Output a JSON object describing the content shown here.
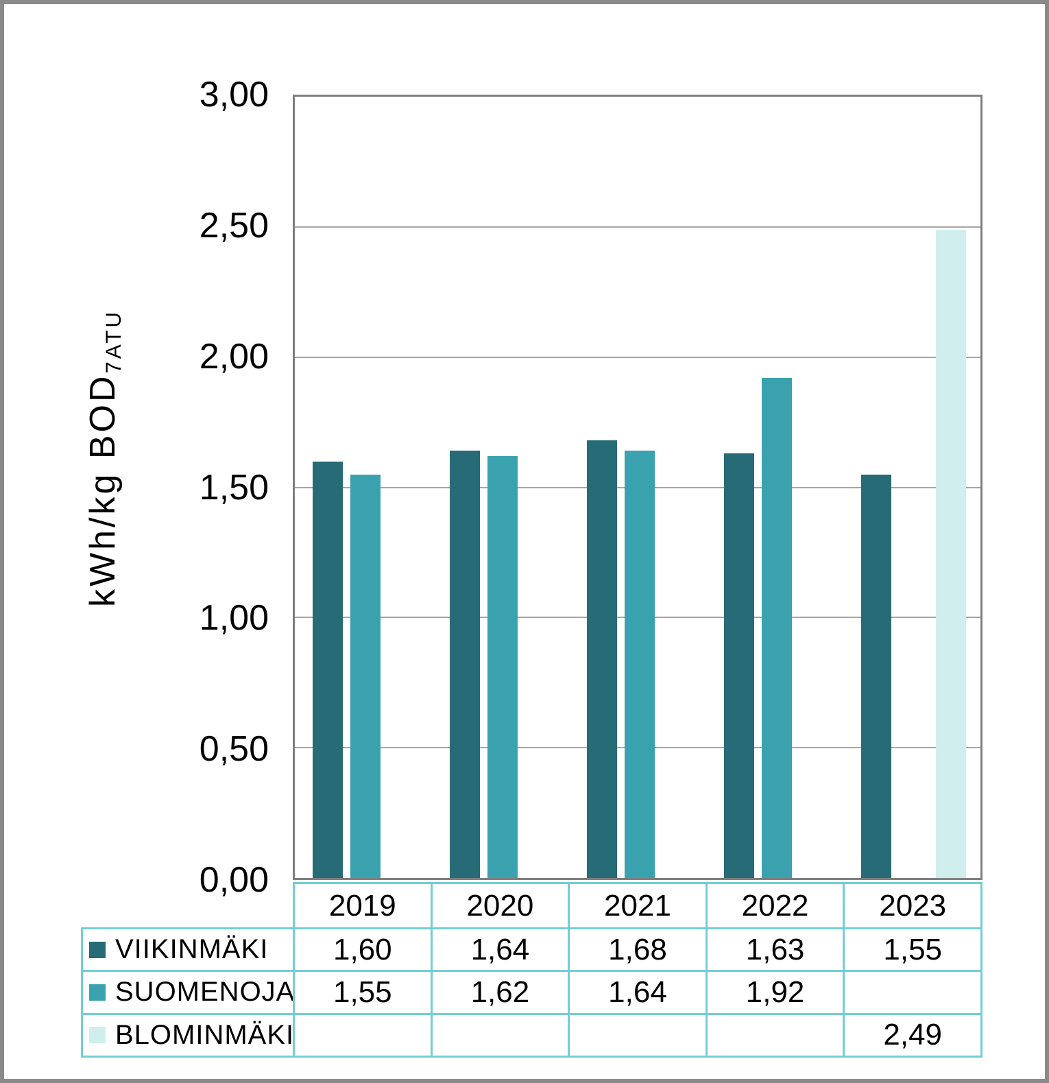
{
  "page": {
    "background": "#ffffff",
    "border_color": "#8a8a8a"
  },
  "chart_data": {
    "type": "bar",
    "title": "",
    "xlabel": "",
    "ylabel": "kWh/kg BOD",
    "ylabel_subscript": "7ATU",
    "categories": [
      "2019",
      "2020",
      "2021",
      "2022",
      "2023"
    ],
    "series": [
      {
        "name": "VIIKINMÄKI",
        "color": "#266b75",
        "values": [
          1.6,
          1.64,
          1.68,
          1.63,
          1.55
        ]
      },
      {
        "name": "SUOMENOJA",
        "color": "#3aa2ae",
        "values": [
          1.55,
          1.62,
          1.64,
          1.92,
          null
        ]
      },
      {
        "name": "BLOMINMÄKI",
        "color": "#cfeeed",
        "values": [
          null,
          null,
          null,
          null,
          2.49
        ]
      }
    ],
    "ylim": [
      0,
      3
    ],
    "ytick_labels": [
      "3,00",
      "2,50",
      "2,00",
      "1,50",
      "1,00",
      "0,50",
      "0,00"
    ],
    "grid": true,
    "gridline_color": "#a6a6a6",
    "plot_border_color": "#7f7f7f",
    "legend_position": "table-left-of-rows"
  },
  "table": {
    "border_color": "#72ced3",
    "rows": [
      {
        "label": "VIIKINMÄKI",
        "swatch_color": "#266b75",
        "cells": [
          "1,60",
          "1,64",
          "1,68",
          "1,63",
          "1,55"
        ]
      },
      {
        "label": "SUOMENOJA",
        "swatch_color": "#3aa2ae",
        "cells": [
          "1,55",
          "1,62",
          "1,64",
          "1,92",
          ""
        ]
      },
      {
        "label": "BLOMINMÄKI",
        "swatch_color": "#cfeeed",
        "cells": [
          "",
          "",
          "",
          "",
          "2,49"
        ]
      }
    ]
  }
}
